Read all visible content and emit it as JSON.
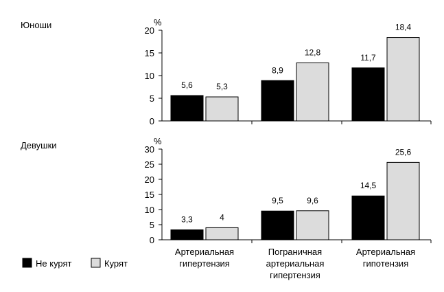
{
  "colors": {
    "not_smoking": "#000000",
    "smoking": "#dcdcdc",
    "axis": "#000000"
  },
  "legend": [
    {
      "label": "Не курят",
      "color": "#000000"
    },
    {
      "label": "Курят",
      "color": "#dcdcdc"
    }
  ],
  "categories": [
    [
      "Артериальная",
      "гипертензия"
    ],
    [
      "Пограничная",
      "артериальная",
      "гипертензия"
    ],
    [
      "Артериальная",
      "гипотензия"
    ]
  ],
  "chart_data": [
    {
      "type": "bar",
      "title": "Юноши",
      "ylabel": "%",
      "ylim": [
        0,
        20
      ],
      "yticks": [
        0,
        5,
        10,
        15,
        20
      ],
      "categories": [
        "Артериальная гипертензия",
        "Пограничная артериальная гипертензия",
        "Артериальная гипотензия"
      ],
      "series": [
        {
          "name": "Не курят",
          "values": [
            5.6,
            8.9,
            11.7
          ],
          "labels": [
            "5,6",
            "8,9",
            "11,7"
          ]
        },
        {
          "name": "Курят",
          "values": [
            5.3,
            12.8,
            18.4
          ],
          "labels": [
            "5,3",
            "12,8",
            "18,4"
          ]
        }
      ]
    },
    {
      "type": "bar",
      "title": "Девушки",
      "ylabel": "%",
      "ylim": [
        0,
        30
      ],
      "yticks": [
        0,
        5,
        10,
        15,
        20,
        25,
        30
      ],
      "categories": [
        "Артериальная гипертензия",
        "Пограничная артериальная гипертензия",
        "Артериальная гипотензия"
      ],
      "series": [
        {
          "name": "Не курят",
          "values": [
            3.3,
            9.5,
            14.5
          ],
          "labels": [
            "3,3",
            "9,5",
            "14,5"
          ]
        },
        {
          "name": "Курят",
          "values": [
            4,
            9.6,
            25.6
          ],
          "labels": [
            "4",
            "9,6",
            "25,6"
          ]
        }
      ]
    }
  ]
}
